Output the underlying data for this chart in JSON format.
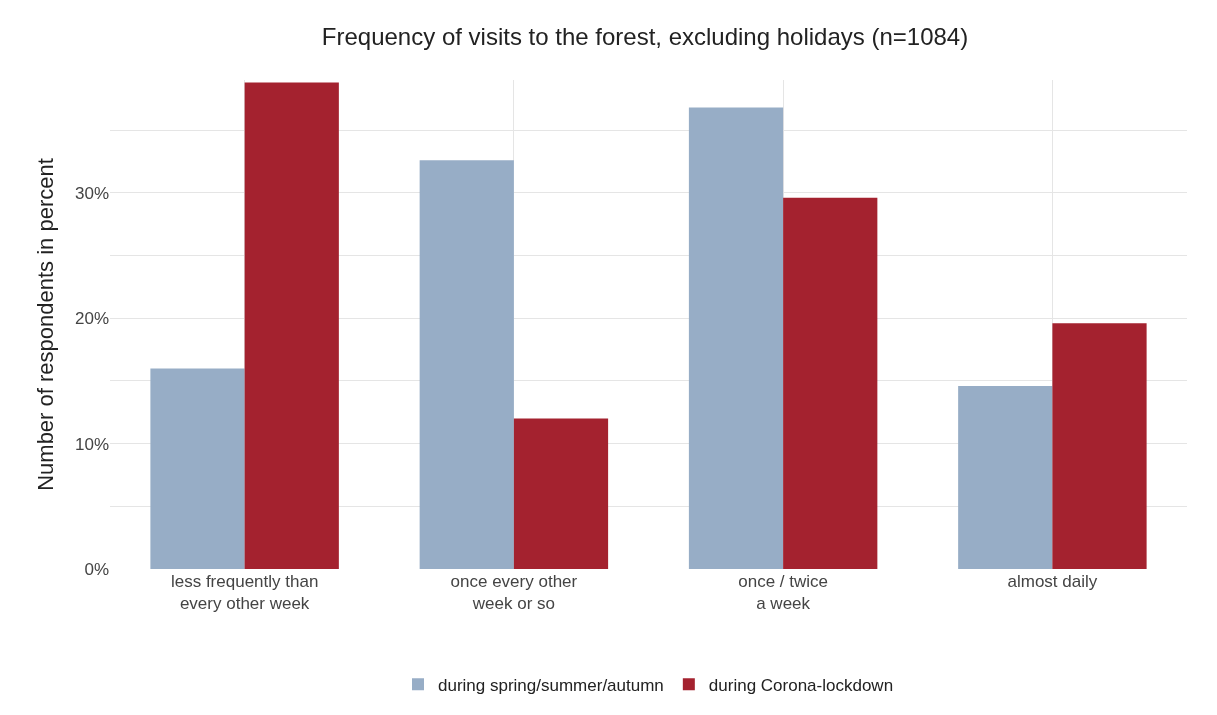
{
  "chart_data": {
    "type": "bar",
    "title": "Frequency of visits to the forest, excluding holidays (n=1084)",
    "ylabel": "Number of respondents in percent",
    "categories": [
      "less frequently than\nevery other week",
      "once every other\nweek or so",
      "once / twice\na week",
      "almost daily"
    ],
    "series": [
      {
        "name": "during spring/summer/autumn",
        "color": "#97adc6",
        "values": [
          16.0,
          32.6,
          36.8,
          14.6
        ]
      },
      {
        "name": "during Corona-lockdown",
        "color": "#a4222f",
        "values": [
          38.8,
          12.0,
          29.6,
          19.6
        ]
      }
    ],
    "ylim": [
      0,
      39
    ],
    "yticks": [
      {
        "value": 0,
        "label": "0%"
      },
      {
        "value": 5,
        "label": null
      },
      {
        "value": 10,
        "label": "10%"
      },
      {
        "value": 15,
        "label": null
      },
      {
        "value": 20,
        "label": "20%"
      },
      {
        "value": 25,
        "label": null
      },
      {
        "value": 30,
        "label": "30%"
      },
      {
        "value": 35,
        "label": null
      }
    ],
    "grid": true,
    "legend": "bottom"
  }
}
